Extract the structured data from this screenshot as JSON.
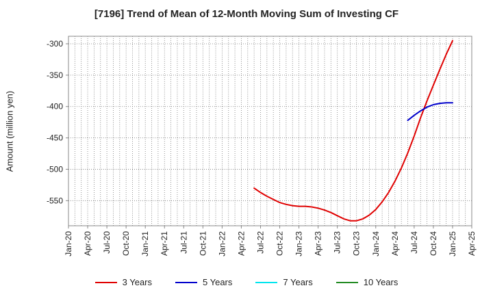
{
  "chart_data": {
    "type": "line",
    "title": "[7196]  Trend of Mean of 12-Month Moving Sum of Investing CF",
    "xlabel": "",
    "ylabel": "Amount (million yen)",
    "ylim": [
      -590,
      -288
    ],
    "yticks": [
      -300,
      -350,
      -400,
      -450,
      -500,
      -550
    ],
    "xticks": [
      "Jan-20",
      "Apr-20",
      "Jul-20",
      "Oct-20",
      "Jan-21",
      "Apr-21",
      "Jul-21",
      "Oct-21",
      "Jan-22",
      "Apr-22",
      "Jul-22",
      "Oct-22",
      "Jan-23",
      "Apr-23",
      "Jul-23",
      "Oct-23",
      "Jan-24",
      "Apr-24",
      "Jul-24",
      "Oct-24",
      "Jan-25",
      "Apr-25"
    ],
    "grid": true,
    "legend_position": "bottom",
    "series": [
      {
        "name": "3 Years",
        "color": "#e00000",
        "points": [
          [
            "Jun-22",
            -530
          ],
          [
            "Jul-22",
            -537
          ],
          [
            "Aug-22",
            -543
          ],
          [
            "Sep-22",
            -548
          ],
          [
            "Oct-22",
            -553
          ],
          [
            "Nov-22",
            -556
          ],
          [
            "Dec-22",
            -558
          ],
          [
            "Jan-23",
            -559
          ],
          [
            "Feb-23",
            -559
          ],
          [
            "Mar-23",
            -560
          ],
          [
            "Apr-23",
            -562
          ],
          [
            "May-23",
            -565
          ],
          [
            "Jun-23",
            -569
          ],
          [
            "Jul-23",
            -574
          ],
          [
            "Aug-23",
            -579
          ],
          [
            "Sep-23",
            -582
          ],
          [
            "Oct-23",
            -582
          ],
          [
            "Nov-23",
            -579
          ],
          [
            "Dec-23",
            -573
          ],
          [
            "Jan-24",
            -564
          ],
          [
            "Feb-24",
            -552
          ],
          [
            "Mar-24",
            -537
          ],
          [
            "Apr-24",
            -519
          ],
          [
            "May-24",
            -498
          ],
          [
            "Jun-24",
            -474
          ],
          [
            "Jul-24",
            -447
          ],
          [
            "Aug-24",
            -418
          ],
          [
            "Sep-24",
            -391
          ],
          [
            "Oct-24",
            -366
          ],
          [
            "Nov-24",
            -341
          ],
          [
            "Dec-24",
            -317
          ],
          [
            "Jan-25",
            -295
          ]
        ]
      },
      {
        "name": "5 Years",
        "color": "#0000cc",
        "points": [
          [
            "Jun-24",
            -422
          ],
          [
            "Jul-24",
            -414
          ],
          [
            "Aug-24",
            -407
          ],
          [
            "Sep-24",
            -401
          ],
          [
            "Oct-24",
            -397
          ],
          [
            "Nov-24",
            -395
          ],
          [
            "Dec-24",
            -394
          ],
          [
            "Jan-25",
            -394
          ]
        ]
      },
      {
        "name": "7 Years",
        "color": "#00e5ee",
        "points": []
      },
      {
        "name": "10 Years",
        "color": "#228b22",
        "points": []
      }
    ]
  }
}
